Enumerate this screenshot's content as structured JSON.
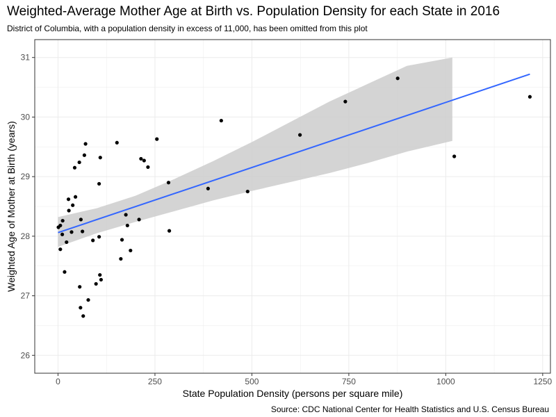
{
  "chart_data": {
    "type": "scatter",
    "title": "Weighted-Average Mother Age at Birth vs. Population Density for each State in 2016",
    "subtitle": "District of Columbia, with a population density in excess of 11,000, has been omitted from this plot",
    "caption": "Source: CDC National Center for Health Statistics and U.S. Census Bureau",
    "xlabel": "State Population Density (persons per square mile)",
    "ylabel": "Weighted Age of Mother at Birth (years)",
    "xlim": [
      -60,
      1270
    ],
    "ylim": [
      25.7,
      31.3
    ],
    "x_ticks": [
      0,
      250,
      500,
      750,
      1000,
      1250
    ],
    "y_ticks": [
      26,
      27,
      28,
      29,
      30,
      31
    ],
    "grid": true,
    "points": [
      {
        "x": 1,
        "y": 28.15
      },
      {
        "x": 6,
        "y": 28.18
      },
      {
        "x": 6,
        "y": 27.78
      },
      {
        "x": 11,
        "y": 28.03
      },
      {
        "x": 12,
        "y": 28.26
      },
      {
        "x": 17,
        "y": 27.4
      },
      {
        "x": 22,
        "y": 27.9
      },
      {
        "x": 27,
        "y": 28.62
      },
      {
        "x": 28,
        "y": 28.43
      },
      {
        "x": 35,
        "y": 28.07
      },
      {
        "x": 38,
        "y": 28.52
      },
      {
        "x": 43,
        "y": 29.15
      },
      {
        "x": 45,
        "y": 28.66
      },
      {
        "x": 55,
        "y": 29.24
      },
      {
        "x": 56,
        "y": 27.15
      },
      {
        "x": 58,
        "y": 26.8
      },
      {
        "x": 59,
        "y": 28.28
      },
      {
        "x": 63,
        "y": 28.08
      },
      {
        "x": 65,
        "y": 26.66
      },
      {
        "x": 68,
        "y": 29.36
      },
      {
        "x": 71,
        "y": 29.55
      },
      {
        "x": 78,
        "y": 26.93
      },
      {
        "x": 90,
        "y": 27.93
      },
      {
        "x": 98,
        "y": 27.2
      },
      {
        "x": 106,
        "y": 27.99
      },
      {
        "x": 106,
        "y": 28.88
      },
      {
        "x": 108,
        "y": 27.35
      },
      {
        "x": 109,
        "y": 29.32
      },
      {
        "x": 111,
        "y": 27.27
      },
      {
        "x": 152,
        "y": 29.57
      },
      {
        "x": 162,
        "y": 27.62
      },
      {
        "x": 165,
        "y": 27.94
      },
      {
        "x": 175,
        "y": 28.36
      },
      {
        "x": 179,
        "y": 28.18
      },
      {
        "x": 187,
        "y": 27.76
      },
      {
        "x": 209,
        "y": 28.28
      },
      {
        "x": 214,
        "y": 29.3
      },
      {
        "x": 222,
        "y": 29.27
      },
      {
        "x": 232,
        "y": 29.16
      },
      {
        "x": 255,
        "y": 29.63
      },
      {
        "x": 285,
        "y": 28.9
      },
      {
        "x": 287,
        "y": 28.09
      },
      {
        "x": 387,
        "y": 28.8
      },
      {
        "x": 421,
        "y": 29.94
      },
      {
        "x": 489,
        "y": 28.75
      },
      {
        "x": 624,
        "y": 29.7
      },
      {
        "x": 741,
        "y": 30.26
      },
      {
        "x": 876,
        "y": 30.65
      },
      {
        "x": 1022,
        "y": 29.34
      },
      {
        "x": 1217,
        "y": 30.34
      }
    ],
    "fit_line": {
      "method": "linear",
      "x": [
        0,
        1217
      ],
      "y": [
        28.06,
        30.72
      ]
    },
    "confidence_band": {
      "x": [
        0,
        100,
        200,
        300,
        400,
        500,
        600,
        700,
        800,
        900,
        1017
      ],
      "upper": [
        28.32,
        28.47,
        28.68,
        28.96,
        29.26,
        29.58,
        29.92,
        30.26,
        30.56,
        30.86,
        31.0
      ],
      "lower": [
        27.82,
        28.05,
        28.24,
        28.42,
        28.6,
        28.76,
        28.91,
        29.06,
        29.23,
        29.42,
        29.6
      ]
    },
    "colors": {
      "panel_background": "#ffffff",
      "panel_border": "#333333",
      "grid": "#ebebeb",
      "point": "#000000",
      "fit_line": "#3366ff",
      "band": "#cccccc"
    }
  }
}
